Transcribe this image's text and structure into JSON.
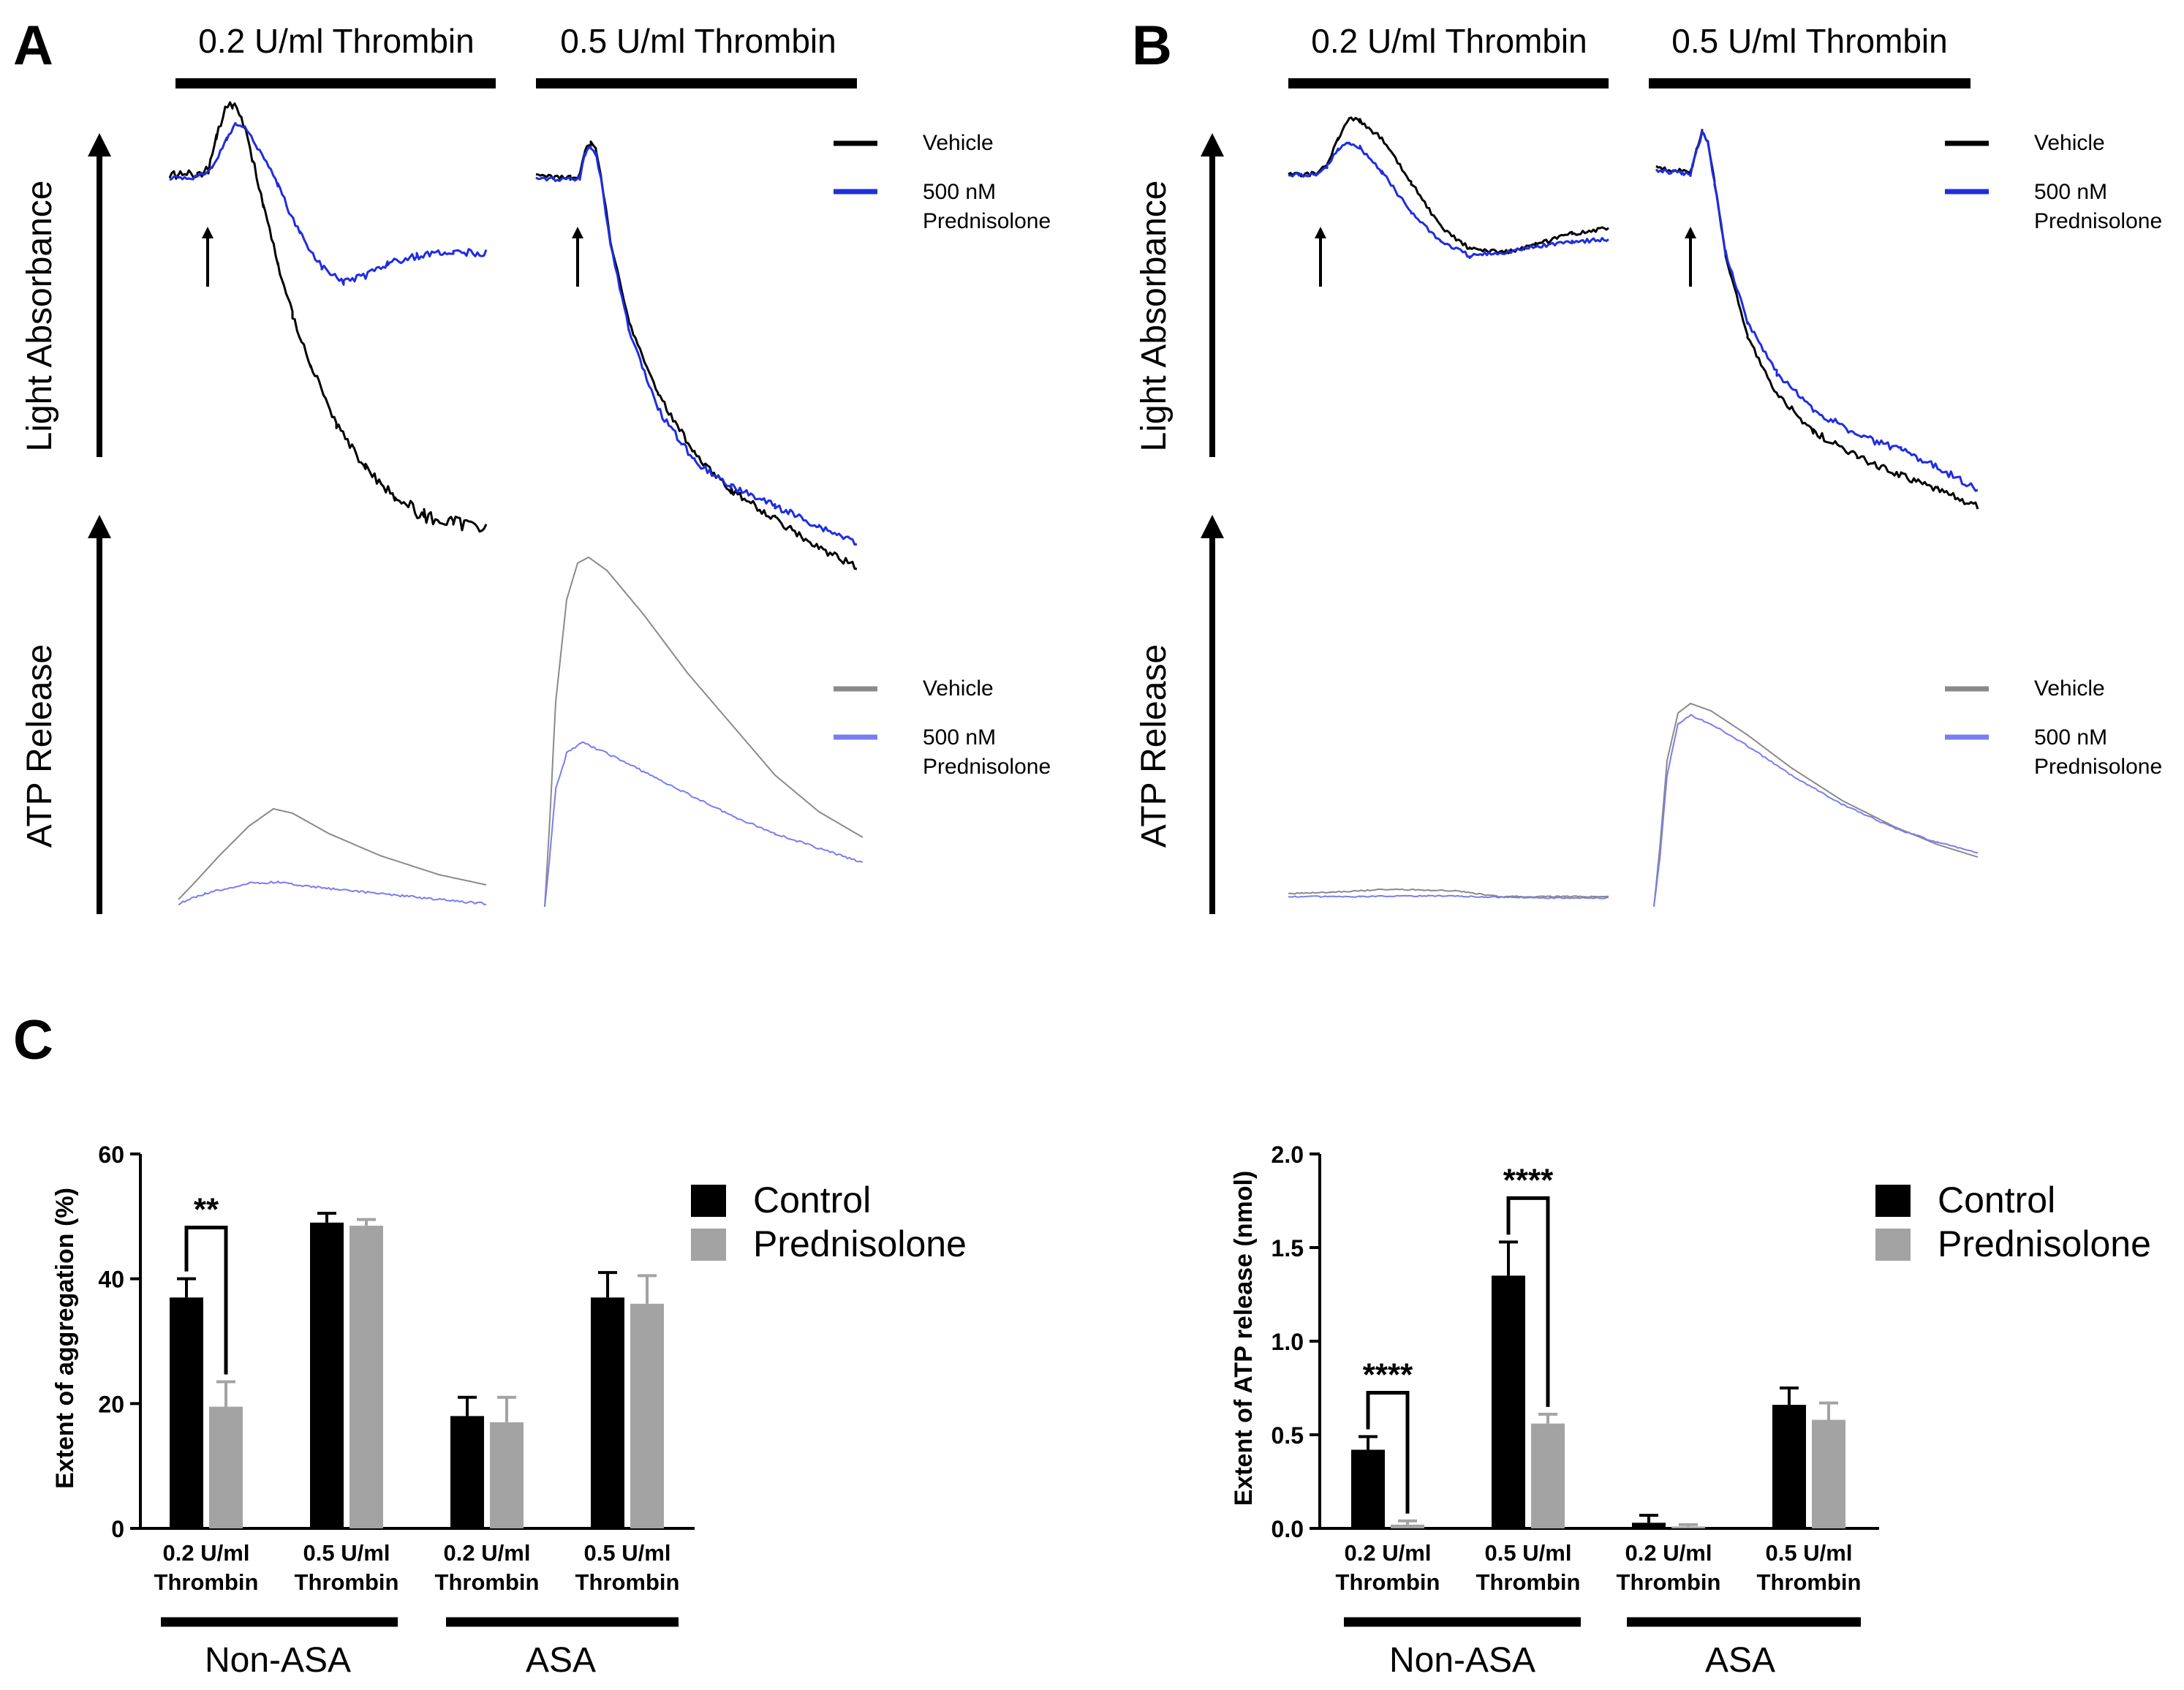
{
  "colors": {
    "vehicle_agg": "#000000",
    "pred_agg": "#1f2de0",
    "vehicle_atp": "#8a8a8a",
    "pred_atp": "#7a7df0",
    "control_bar": "#000000",
    "pred_bar": "#a3a3a3"
  },
  "panels": {
    "A": {
      "letter": "A",
      "header_low": "0.2 U/ml Thrombin",
      "header_high": "0.5 U/ml Thrombin",
      "y_agg": "Light Absorbance",
      "y_atp": "ATP Release",
      "legend_agg": [
        "Vehicle",
        "500 nM",
        "Prednisolone"
      ],
      "legend_atp": [
        "Vehicle",
        "500 nM",
        "Prednisolone"
      ]
    },
    "B": {
      "letter": "B",
      "header_low": "0.2 U/ml Thrombin",
      "header_high": "0.5 U/ml Thrombin",
      "y_agg": "Light Absorbance",
      "y_atp": "ATP Release",
      "legend_agg": [
        "Vehicle",
        "500 nM",
        "Prednisolone"
      ],
      "legend_atp": [
        "Vehicle",
        "500 nM",
        "Prednisolone"
      ]
    },
    "C": {
      "letter": "C"
    }
  },
  "chart_data": [
    {
      "type": "bar",
      "ylabel": "Extent of aggregation (%)",
      "ylim": [
        0,
        60
      ],
      "yticks": [
        "0",
        "20",
        "40",
        "60"
      ],
      "categories": [
        "0.2 U/ml Thrombin",
        "0.5 U/ml Thrombin",
        "0.2 U/ml Thrombin",
        "0.5 U/ml Thrombin"
      ],
      "category_lines": [
        [
          "0.2 U/ml",
          "Thrombin"
        ],
        [
          "0.5 U/ml",
          "Thrombin"
        ],
        [
          "0.2 U/ml",
          "Thrombin"
        ],
        [
          "0.5 U/ml",
          "Thrombin"
        ]
      ],
      "groups": [
        "Non-ASA",
        "ASA"
      ],
      "legend": [
        "Control",
        "Prednisolone"
      ],
      "series": [
        {
          "name": "Control",
          "values": [
            37,
            49,
            18,
            37
          ],
          "errors": [
            3,
            1.5,
            3,
            4
          ]
        },
        {
          "name": "Prednisolone",
          "values": [
            19.5,
            48.5,
            17,
            36
          ],
          "errors": [
            4,
            1,
            4,
            4.5
          ]
        }
      ],
      "significance": [
        {
          "category": 0,
          "label": "**"
        }
      ]
    },
    {
      "type": "bar",
      "ylabel": "Extent of ATP release (nmol)",
      "ylim": [
        0,
        2.0
      ],
      "yticks": [
        "0.0",
        "0.5",
        "1.0",
        "1.5",
        "2.0"
      ],
      "categories": [
        "0.2 U/ml Thrombin",
        "0.5 U/ml Thrombin",
        "0.2 U/ml Thrombin",
        "0.5 U/ml Thrombin"
      ],
      "category_lines": [
        [
          "0.2 U/ml",
          "Thrombin"
        ],
        [
          "0.5 U/ml",
          "Thrombin"
        ],
        [
          "0.2 U/ml",
          "Thrombin"
        ],
        [
          "0.5 U/ml",
          "Thrombin"
        ]
      ],
      "groups": [
        "Non-ASA",
        "ASA"
      ],
      "legend": [
        "Control",
        "Prednisolone"
      ],
      "series": [
        {
          "name": "Control",
          "values": [
            0.42,
            1.35,
            0.03,
            0.66
          ],
          "errors": [
            0.07,
            0.18,
            0.04,
            0.09
          ]
        },
        {
          "name": "Prednisolone",
          "values": [
            0.02,
            0.56,
            0.01,
            0.58
          ],
          "errors": [
            0.02,
            0.05,
            0.01,
            0.09
          ]
        }
      ],
      "significance": [
        {
          "category": 0,
          "label": "****"
        },
        {
          "category": 1,
          "label": "****"
        }
      ]
    }
  ]
}
